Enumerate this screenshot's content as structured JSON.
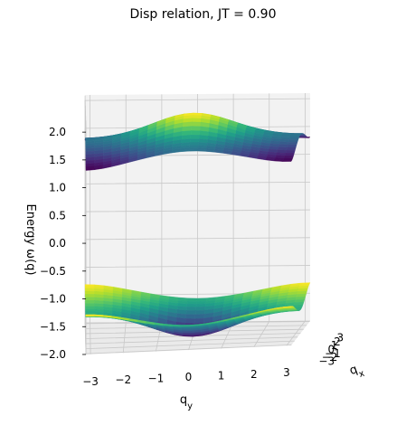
{
  "chart_data": {
    "type": "surface3d",
    "title": "Disp relation, JT = 0.90",
    "xlabel": "q_x",
    "ylabel": "q_y",
    "zlabel": "Energy ω(q)",
    "x_ticks": [
      "−3",
      "−2",
      "−1",
      "0",
      "1",
      "2",
      "3"
    ],
    "y_ticks": [
      "−3",
      "−2",
      "−1",
      "0",
      "1",
      "2",
      "3"
    ],
    "z_ticks": [
      "−2.0",
      "−1.5",
      "−1.0",
      "−0.5",
      "0.0",
      "0.5",
      "1.0",
      "1.5",
      "2.0"
    ],
    "xlim": [
      -3.14,
      3.14
    ],
    "ylim": [
      -3.14,
      3.14
    ],
    "zlim": [
      -2.0,
      2.1
    ],
    "colormap": "viridis",
    "grid": true,
    "surfaces": [
      {
        "band": "upper",
        "formula": "+sqrt(0.1 + 0.9*(cos qx + cos qy)^2 / 4) scaled",
        "z_range": [
          1.31,
          2.0
        ]
      },
      {
        "band": "lower",
        "formula": "negative mirror of upper band",
        "z_range": [
          -2.0,
          -1.31
        ]
      }
    ],
    "JT": 0.9,
    "grid_points": 25
  }
}
